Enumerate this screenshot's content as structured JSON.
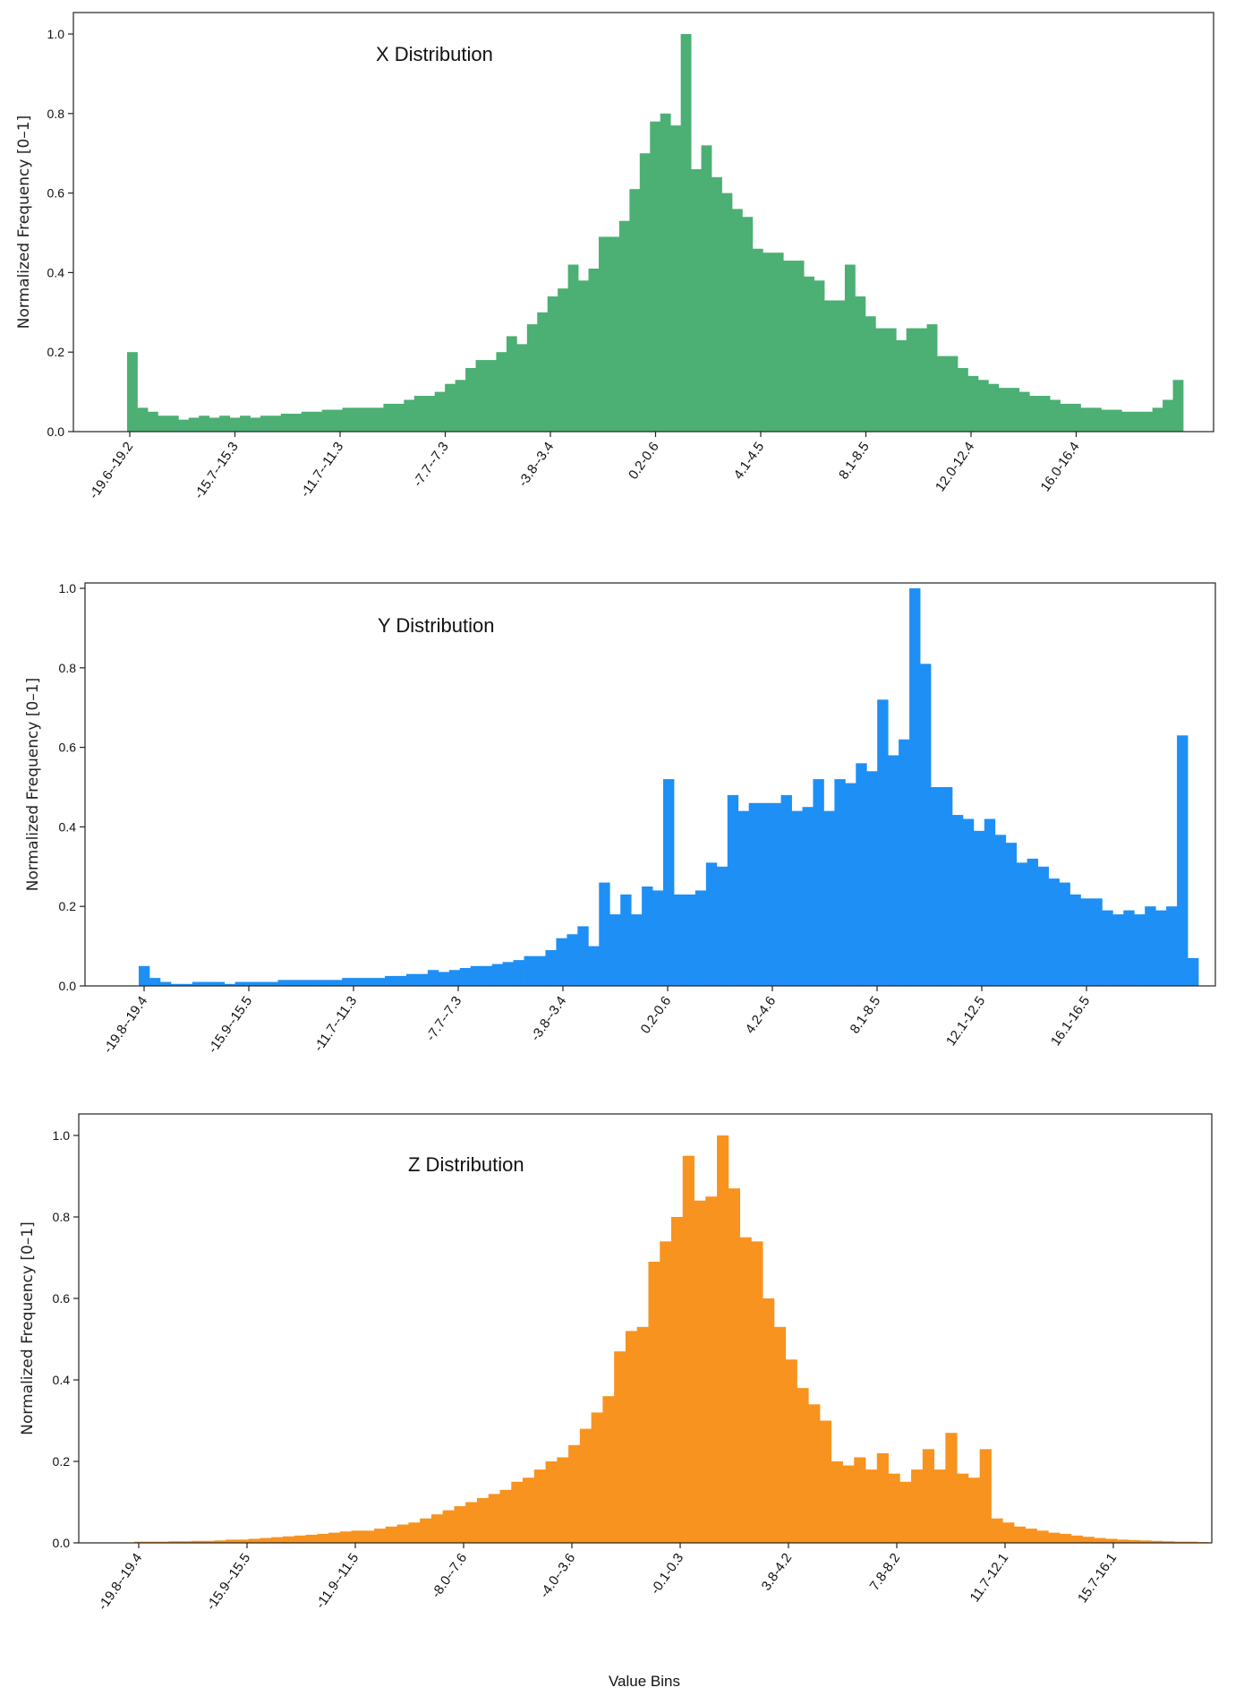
{
  "chart_data": [
    {
      "type": "bar",
      "title": "X Distribution",
      "ylabel": "Normalized Frequency [0–1]",
      "xlabel": "",
      "ylim": [
        0,
        1.0
      ],
      "yticks": [
        "0.0",
        "0.2",
        "0.4",
        "0.6",
        "0.8",
        "1.0"
      ],
      "tick_labels": [
        "-19.6--19.2",
        "-15.7--15.3",
        "-11.7--11.3",
        "-7.7--7.3",
        "-3.8--3.4",
        "0.2-0.6",
        "4.1-4.5",
        "8.1-8.5",
        "12.0-12.4",
        "16.0-16.4"
      ],
      "color": "#4caf74",
      "values": [
        0.2,
        0.06,
        0.05,
        0.04,
        0.04,
        0.03,
        0.035,
        0.04,
        0.035,
        0.04,
        0.035,
        0.04,
        0.035,
        0.04,
        0.04,
        0.045,
        0.045,
        0.05,
        0.05,
        0.055,
        0.055,
        0.06,
        0.06,
        0.06,
        0.06,
        0.07,
        0.07,
        0.08,
        0.09,
        0.09,
        0.1,
        0.12,
        0.13,
        0.16,
        0.18,
        0.18,
        0.2,
        0.24,
        0.22,
        0.27,
        0.3,
        0.34,
        0.36,
        0.42,
        0.38,
        0.41,
        0.49,
        0.49,
        0.53,
        0.61,
        0.7,
        0.78,
        0.8,
        0.77,
        1.0,
        0.66,
        0.72,
        0.64,
        0.6,
        0.56,
        0.54,
        0.46,
        0.45,
        0.45,
        0.43,
        0.43,
        0.39,
        0.38,
        0.33,
        0.33,
        0.42,
        0.34,
        0.29,
        0.26,
        0.26,
        0.23,
        0.26,
        0.26,
        0.27,
        0.19,
        0.19,
        0.16,
        0.14,
        0.13,
        0.12,
        0.11,
        0.11,
        0.1,
        0.09,
        0.09,
        0.08,
        0.07,
        0.07,
        0.06,
        0.06,
        0.055,
        0.055,
        0.05,
        0.05,
        0.05,
        0.06,
        0.08,
        0.13
      ]
    },
    {
      "type": "bar",
      "title": "Y Distribution",
      "ylabel": "Normalized Frequency [0–1]",
      "xlabel": "",
      "ylim": [
        0,
        1.0
      ],
      "yticks": [
        "0.0",
        "0.2",
        "0.4",
        "0.6",
        "0.8",
        "1.0"
      ],
      "tick_labels": [
        "-19.8--19.4",
        "-15.9--15.5",
        "-11.7--11.3",
        "-7.7--7.3",
        "-3.8--3.4",
        "0.2-0.6",
        "4.2-4.6",
        "8.1-8.5",
        "12.1-12.5",
        "16.1-16.5"
      ],
      "color": "#1e8ff5",
      "values": [
        0.05,
        0.02,
        0.01,
        0.005,
        0.005,
        0.01,
        0.01,
        0.01,
        0.005,
        0.01,
        0.01,
        0.01,
        0.01,
        0.015,
        0.015,
        0.015,
        0.015,
        0.015,
        0.015,
        0.02,
        0.02,
        0.02,
        0.02,
        0.025,
        0.025,
        0.03,
        0.03,
        0.04,
        0.035,
        0.04,
        0.045,
        0.05,
        0.05,
        0.055,
        0.06,
        0.065,
        0.075,
        0.075,
        0.09,
        0.12,
        0.13,
        0.15,
        0.1,
        0.26,
        0.18,
        0.23,
        0.18,
        0.25,
        0.24,
        0.52,
        0.23,
        0.23,
        0.24,
        0.31,
        0.3,
        0.48,
        0.44,
        0.46,
        0.46,
        0.46,
        0.48,
        0.44,
        0.45,
        0.52,
        0.44,
        0.52,
        0.51,
        0.56,
        0.54,
        0.72,
        0.58,
        0.62,
        1.0,
        0.81,
        0.5,
        0.5,
        0.43,
        0.42,
        0.39,
        0.42,
        0.38,
        0.36,
        0.31,
        0.32,
        0.3,
        0.27,
        0.26,
        0.23,
        0.22,
        0.22,
        0.19,
        0.18,
        0.19,
        0.18,
        0.2,
        0.19,
        0.2,
        0.63,
        0.07
      ]
    },
    {
      "type": "bar",
      "title": "Z Distribution",
      "ylabel": "Normalized Frequency [0–1]",
      "xlabel": "Value Bins",
      "ylim": [
        0,
        1.0
      ],
      "yticks": [
        "0.0",
        "0.2",
        "0.4",
        "0.6",
        "0.8",
        "1.0"
      ],
      "tick_labels": [
        "-19.8--19.4",
        "-15.9--15.5",
        "-11.9--11.5",
        "-8.0--7.6",
        "-4.0--3.6",
        "-0.1-0.3",
        "3.8-4.2",
        "7.8-8.2",
        "11.7-12.1",
        "15.7-16.1"
      ],
      "color": "#f7931e",
      "values": [
        0.003,
        0.003,
        0.003,
        0.004,
        0.004,
        0.005,
        0.005,
        0.006,
        0.008,
        0.008,
        0.01,
        0.012,
        0.014,
        0.016,
        0.018,
        0.02,
        0.022,
        0.025,
        0.028,
        0.03,
        0.03,
        0.035,
        0.04,
        0.045,
        0.05,
        0.06,
        0.07,
        0.08,
        0.09,
        0.1,
        0.11,
        0.12,
        0.13,
        0.15,
        0.16,
        0.18,
        0.2,
        0.21,
        0.24,
        0.28,
        0.32,
        0.36,
        0.47,
        0.52,
        0.53,
        0.69,
        0.74,
        0.8,
        0.95,
        0.84,
        0.85,
        1.0,
        0.87,
        0.75,
        0.74,
        0.6,
        0.53,
        0.45,
        0.38,
        0.34,
        0.3,
        0.2,
        0.19,
        0.21,
        0.18,
        0.22,
        0.17,
        0.15,
        0.18,
        0.23,
        0.18,
        0.27,
        0.17,
        0.16,
        0.23,
        0.06,
        0.05,
        0.04,
        0.035,
        0.03,
        0.025,
        0.022,
        0.018,
        0.015,
        0.012,
        0.01,
        0.008,
        0.007,
        0.006,
        0.005,
        0.004,
        0.003,
        0.003,
        0.002
      ]
    }
  ]
}
